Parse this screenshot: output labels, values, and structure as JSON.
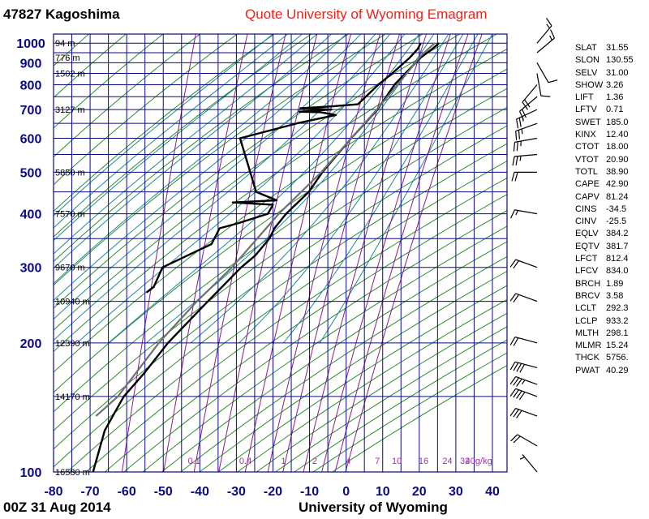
{
  "header": {
    "station": "47827  Kagoshima",
    "quote": "Quote University of Wyoming Emagram"
  },
  "footer": {
    "datetime": "00Z 31 Aug 2014",
    "university": "University of Wyoming"
  },
  "colors": {
    "grid": "#0a0a84",
    "dry_adiabat": "#2e8b2e",
    "moist_adiabat": "#1f8a9a",
    "mixing_ratio": "#8b1a8b",
    "temperature": "#000000",
    "dewpoint": "#000000",
    "parcel": "#707070",
    "axis_label": "#0a0a84",
    "mixing_label": "#a030a0"
  },
  "indices": [
    {
      "key": "SLAT",
      "value": "31.55"
    },
    {
      "key": "SLON",
      "value": "130.55"
    },
    {
      "key": "SELV",
      "value": "31.00"
    },
    {
      "key": "SHOW",
      "value": "3.26"
    },
    {
      "key": "LIFT",
      "value": "1.36"
    },
    {
      "key": "LFTV",
      "value": "0.71"
    },
    {
      "key": "SWET",
      "value": "185.0"
    },
    {
      "key": "KINX",
      "value": "12.40"
    },
    {
      "key": "CTOT",
      "value": "18.00"
    },
    {
      "key": "VTOT",
      "value": "20.90"
    },
    {
      "key": "TOTL",
      "value": "38.90"
    },
    {
      "key": "CAPE",
      "value": "42.90"
    },
    {
      "key": "CAPV",
      "value": "81.24"
    },
    {
      "key": "CINS",
      "value": "-34.5"
    },
    {
      "key": "CINV",
      "value": "-25.5"
    },
    {
      "key": "EQLV",
      "value": "384.2"
    },
    {
      "key": "EQTV",
      "value": "381.7"
    },
    {
      "key": "LFCT",
      "value": "812.4"
    },
    {
      "key": "LFCV",
      "value": "834.0"
    },
    {
      "key": "BRCH",
      "value": "1.89"
    },
    {
      "key": "BRCV",
      "value": "3.58"
    },
    {
      "key": "LCLT",
      "value": "292.3"
    },
    {
      "key": "LCLP",
      "value": "933.2"
    },
    {
      "key": "MLTH",
      "value": "298.1"
    },
    {
      "key": "MLMR",
      "value": "15.24"
    },
    {
      "key": "THCK",
      "value": "5756."
    },
    {
      "key": "PWAT",
      "value": "40.29"
    }
  ],
  "chart_data": {
    "type": "line",
    "diagram": "emagram",
    "x_axis": {
      "ticks": [
        -80,
        -70,
        -60,
        -50,
        -40,
        -30,
        -20,
        -10,
        0,
        10,
        20,
        30,
        40
      ],
      "range": [
        -80,
        44
      ]
    },
    "y_axis": {
      "scale": "log",
      "range": [
        1050,
        100
      ],
      "labeled_ticks": [
        100,
        200,
        300,
        400,
        500,
        600,
        700,
        800,
        900,
        1000
      ]
    },
    "isobars": [
      100,
      150,
      200,
      250,
      300,
      350,
      400,
      450,
      500,
      550,
      600,
      650,
      700,
      750,
      800,
      850,
      900,
      950,
      1000
    ],
    "height_labels": [
      {
        "p": 100,
        "text": "16580 m"
      },
      {
        "p": 150,
        "text": "14170 m"
      },
      {
        "p": 200,
        "text": "12390 m"
      },
      {
        "p": 250,
        "text": "10940 m"
      },
      {
        "p": 300,
        "text": "9670 m"
      },
      {
        "p": 400,
        "text": "7570 m"
      },
      {
        "p": 500,
        "text": "5850 m"
      },
      {
        "p": 700,
        "text": "3127 m"
      },
      {
        "p": 850,
        "text": "1502 m"
      },
      {
        "p": 925,
        "text": "776 m"
      },
      {
        "p": 1000,
        "text": "94 m"
      }
    ],
    "mixing_ratio_labels": [
      {
        "w": 0.1,
        "text": "0.1"
      },
      {
        "w": 0.4,
        "text": "0.4"
      },
      {
        "w": 1,
        "text": "1"
      },
      {
        "w": 2,
        "text": "2"
      },
      {
        "w": 4,
        "text": "4"
      },
      {
        "w": 7,
        "text": "7"
      },
      {
        "w": 10,
        "text": "10"
      },
      {
        "w": 16,
        "text": "16"
      },
      {
        "w": 24,
        "text": "24"
      },
      {
        "w": 32,
        "text": "32"
      },
      {
        "w": 40,
        "text": "40g/kg"
      }
    ],
    "series": [
      {
        "label": "Temperature",
        "points": [
          [
            1000,
            25.4
          ],
          [
            970,
            23.6
          ],
          [
            925,
            20.4
          ],
          [
            850,
            16.2
          ],
          [
            800,
            13.2
          ],
          [
            700,
            8.6
          ],
          [
            600,
            1.4
          ],
          [
            500,
            -6.5
          ],
          [
            450,
            -10.2
          ],
          [
            400,
            -16.4
          ],
          [
            370,
            -19.6
          ],
          [
            350,
            -21.0
          ],
          [
            320,
            -24.8
          ],
          [
            300,
            -28.7
          ],
          [
            250,
            -37.8
          ],
          [
            200,
            -48.7
          ],
          [
            170,
            -55.2
          ],
          [
            150,
            -60.8
          ],
          [
            125,
            -66.0
          ],
          [
            100,
            -69.2
          ]
        ]
      },
      {
        "label": "Dewpoint",
        "points": [
          [
            1000,
            20.4
          ],
          [
            970,
            19.6
          ],
          [
            925,
            17.4
          ],
          [
            850,
            12.6
          ],
          [
            800,
            8.8
          ],
          [
            720,
            3.2
          ],
          [
            712,
            -4.0
          ],
          [
            705,
            -12.5
          ],
          [
            700,
            -4.0
          ],
          [
            692,
            -12.8
          ],
          [
            690,
            -7.0
          ],
          [
            680,
            -2.8
          ],
          [
            650,
            -13.4
          ],
          [
            600,
            -29.0
          ],
          [
            500,
            -26.2
          ],
          [
            450,
            -24.6
          ],
          [
            430,
            -19.0
          ],
          [
            425,
            -31.0
          ],
          [
            420,
            -20.0
          ],
          [
            400,
            -21.4
          ],
          [
            380,
            -29.6
          ],
          [
            370,
            -34.6
          ],
          [
            340,
            -36.8
          ],
          [
            300,
            -50.2
          ],
          [
            270,
            -52.6
          ],
          [
            262,
            -54.6
          ]
        ]
      },
      {
        "label": "Parcel",
        "points": [
          [
            1000,
            24.2
          ],
          [
            933,
            20.4
          ],
          [
            850,
            16.6
          ],
          [
            700,
            8.4
          ],
          [
            600,
            1.4
          ],
          [
            500,
            -6.8
          ],
          [
            400,
            -18.4
          ],
          [
            300,
            -31.2
          ],
          [
            250,
            -40.8
          ],
          [
            200,
            -51.2
          ],
          [
            150,
            -62.4
          ],
          [
            135,
            -68.4
          ]
        ]
      }
    ],
    "wind_barbs": [
      {
        "p": 1000,
        "dir": 40,
        "spd": 15
      },
      {
        "p": 950,
        "dir": 50,
        "spd": 15
      },
      {
        "p": 900,
        "dir": 150,
        "spd": 10
      },
      {
        "p": 850,
        "dir": 170,
        "spd": 10
      },
      {
        "p": 800,
        "dir": 220,
        "spd": 20
      },
      {
        "p": 750,
        "dir": 230,
        "spd": 20
      },
      {
        "p": 700,
        "dir": 245,
        "spd": 25
      },
      {
        "p": 650,
        "dir": 250,
        "spd": 25
      },
      {
        "p": 600,
        "dir": 260,
        "spd": 25
      },
      {
        "p": 550,
        "dir": 265,
        "spd": 25
      },
      {
        "p": 500,
        "dir": 270,
        "spd": 20
      },
      {
        "p": 400,
        "dir": 280,
        "spd": 15
      },
      {
        "p": 300,
        "dir": 290,
        "spd": 20
      },
      {
        "p": 250,
        "dir": 290,
        "spd": 20
      },
      {
        "p": 200,
        "dir": 285,
        "spd": 20
      },
      {
        "p": 175,
        "dir": 285,
        "spd": 40
      },
      {
        "p": 160,
        "dir": 290,
        "spd": 35
      },
      {
        "p": 150,
        "dir": 290,
        "spd": 40
      },
      {
        "p": 135,
        "dir": 290,
        "spd": 30
      },
      {
        "p": 115,
        "dir": 300,
        "spd": 20
      },
      {
        "p": 100,
        "dir": 320,
        "spd": 5
      }
    ]
  }
}
